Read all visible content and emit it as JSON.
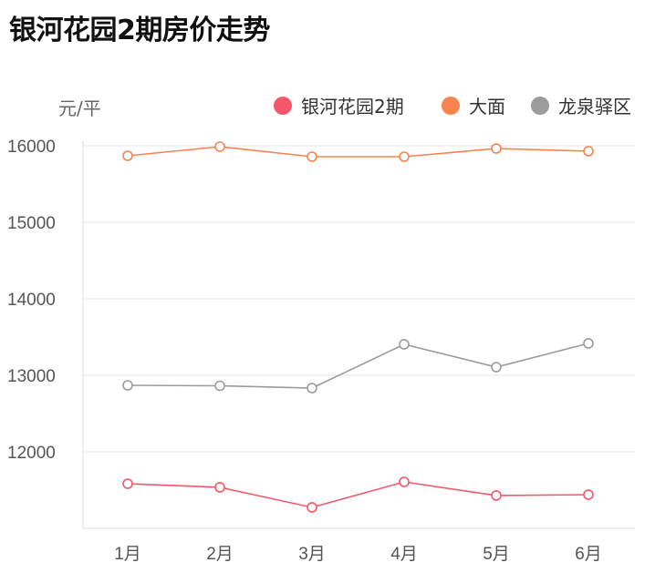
{
  "title": "银河花园2期房价走势",
  "chart_data": {
    "type": "line",
    "title": "银河花园2期房价走势",
    "ylabel": "元/平",
    "xlabel": "",
    "categories": [
      "1月",
      "2月",
      "3月",
      "4月",
      "5月",
      "6月"
    ],
    "ylim": [
      11000,
      16000
    ],
    "yticks": [
      12000,
      13000,
      14000,
      15000,
      16000
    ],
    "grid": true,
    "legend": "top-right",
    "series": [
      {
        "name": "银河花园2期",
        "color": "#f5566a",
        "values": [
          11583,
          11536,
          11274,
          11607,
          11429,
          11440
        ]
      },
      {
        "name": "大面",
        "color": "#f7844f",
        "values": [
          15869,
          15988,
          15857,
          15857,
          15964,
          15929
        ]
      },
      {
        "name": "龙泉驿区",
        "color": "#9b9b9b",
        "values": [
          12869,
          12863,
          12833,
          13405,
          13107,
          13417
        ]
      }
    ]
  }
}
